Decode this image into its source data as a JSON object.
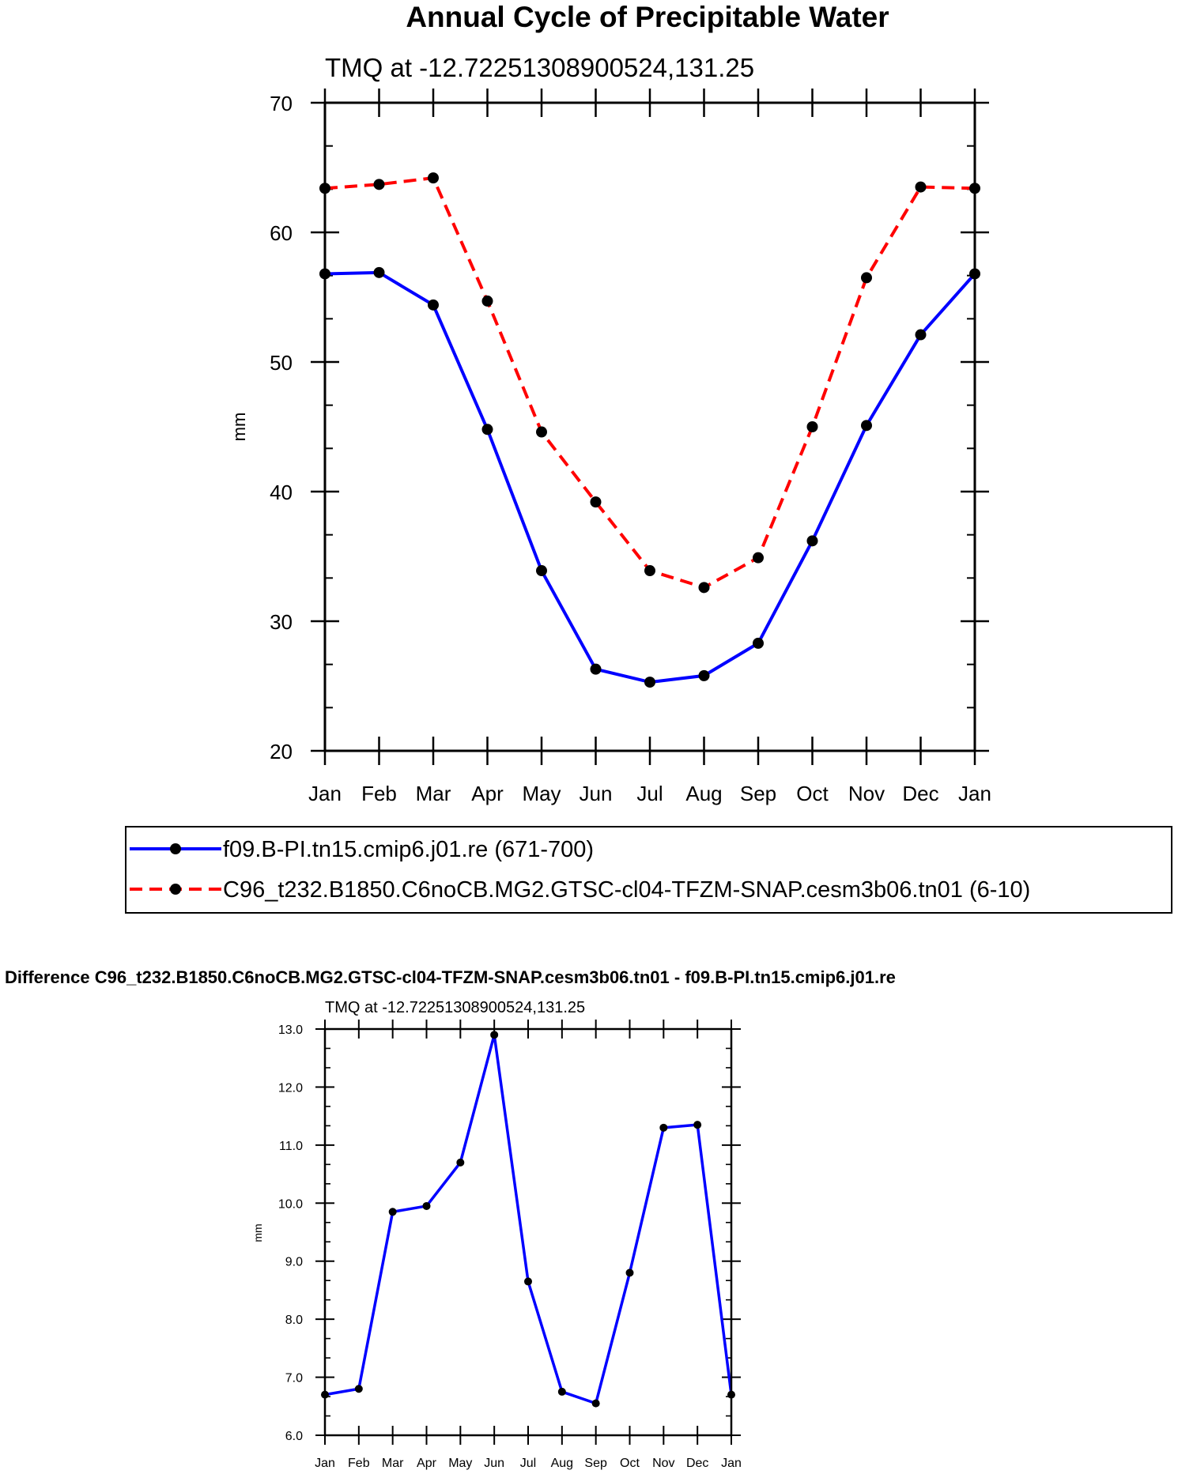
{
  "chart_data": [
    {
      "type": "line",
      "title": "Annual Cycle of Precipitable Water",
      "subtitle": "TMQ at -12.72251308900524,131.25",
      "ylabel": "mm",
      "xlabel": "",
      "categories": [
        "Jan",
        "Feb",
        "Mar",
        "Apr",
        "May",
        "Jun",
        "Jul",
        "Aug",
        "Sep",
        "Oct",
        "Nov",
        "Dec",
        "Jan"
      ],
      "ylim": [
        20,
        70
      ],
      "yticks": [
        "20",
        "30",
        "40",
        "50",
        "60",
        "70"
      ],
      "series": [
        {
          "name": "f09.B-PI.tn15.cmip6.j01.re (671-700)",
          "color": "#0000ff",
          "dash": "solid",
          "values": [
            56.8,
            56.9,
            54.4,
            44.8,
            33.9,
            26.3,
            25.3,
            25.8,
            28.3,
            36.2,
            45.1,
            52.1,
            56.8
          ]
        },
        {
          "name": "C96_t232.B1850.C6noCB.MG2.GTSC-cl04-TFZM-SNAP.cesm3b06.tn01 (6-10)",
          "color": "#ff0000",
          "dash": "dashed",
          "values": [
            63.4,
            63.7,
            64.2,
            54.7,
            44.6,
            39.2,
            33.9,
            32.6,
            34.9,
            45.0,
            56.5,
            63.5,
            63.4
          ]
        }
      ],
      "legend_position": "below"
    },
    {
      "type": "line",
      "title": "Difference C96_t232.B1850.C6noCB.MG2.GTSC-cl04-TFZM-SNAP.cesm3b06.tn01 - f09.B-PI.tn15.cmip6.j01.re",
      "subtitle": "TMQ at -12.72251308900524,131.25",
      "ylabel": "mm",
      "xlabel": "",
      "categories": [
        "Jan",
        "Feb",
        "Mar",
        "Apr",
        "May",
        "Jun",
        "Jul",
        "Aug",
        "Sep",
        "Oct",
        "Nov",
        "Dec",
        "Jan"
      ],
      "ylim": [
        6.0,
        13.0
      ],
      "yticks": [
        "6.0",
        "7.0",
        "8.0",
        "9.0",
        "10.0",
        "11.0",
        "12.0",
        "13.0"
      ],
      "series": [
        {
          "name": "Difference",
          "color": "#0000ff",
          "dash": "solid",
          "values": [
            6.7,
            6.8,
            9.85,
            9.95,
            10.7,
            12.9,
            8.65,
            6.75,
            6.55,
            8.8,
            11.3,
            11.35,
            6.7
          ]
        }
      ]
    }
  ]
}
